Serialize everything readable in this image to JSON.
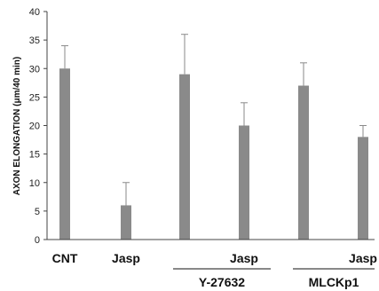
{
  "chart_data": {
    "type": "bar",
    "ylabel": "AXON ELONGATION (μm/40 min)",
    "ylim": [
      0,
      40
    ],
    "yticks": [
      0,
      5,
      10,
      15,
      20,
      25,
      30,
      35,
      40
    ],
    "grid": false,
    "categories": [
      "CNT",
      "Jasp",
      "",
      "Jasp",
      "",
      "Jasp"
    ],
    "values": [
      30,
      6,
      29,
      20,
      27,
      18
    ],
    "errors": [
      4,
      4,
      7,
      4,
      4,
      2
    ],
    "group_labels": [
      "Y-27632",
      "MLCKp1"
    ],
    "bar_color": "#8a8a8a",
    "error_color": "#8a8a8a"
  }
}
